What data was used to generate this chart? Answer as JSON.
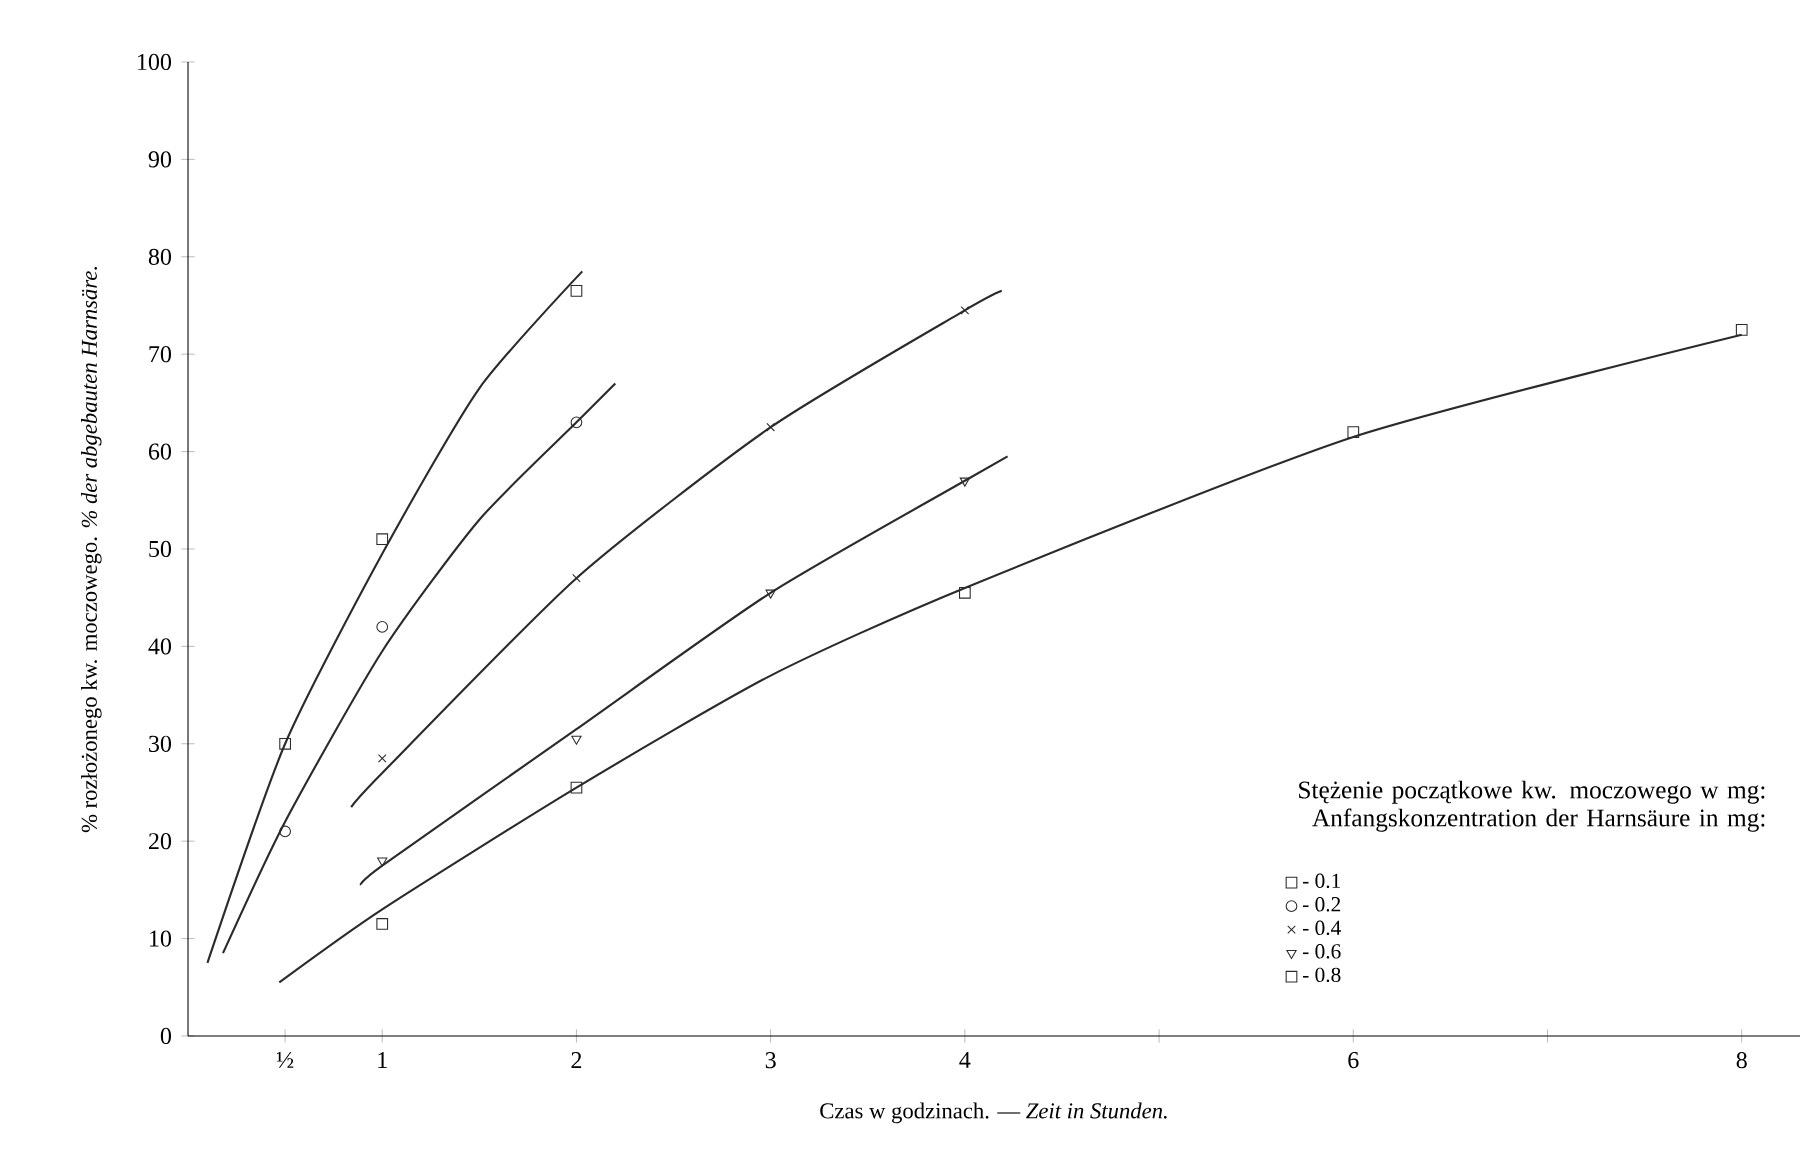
{
  "chart_data": {
    "type": "scatter",
    "xlabel": "Czas w godzinach.  —  *Zeit in Stunden.*",
    "ylabel": "% rozłożonego kw. moczowego.   *% der abgebauten Harnsäre.*",
    "legend_title": "Stężenie początkowe kw. moczowego w mg: Anfangskonzentration der Harnsäure in mg:",
    "legend": "bottom right",
    "xlim": [
      0,
      8.3
    ],
    "ylim": [
      0,
      100
    ],
    "xticks": [
      {
        "value": 0.5,
        "label": "½"
      },
      1,
      2,
      3,
      4,
      {
        "value": 5,
        "label": null
      },
      6,
      {
        "value": 7,
        "label": null
      },
      8
    ],
    "yticks": [
      0,
      10,
      20,
      30,
      40,
      50,
      60,
      70,
      80,
      90,
      100
    ],
    "grid": false,
    "series": [
      {
        "name": "- 0.1",
        "marker": "square",
        "color": "#2b2b2b",
        "x": [
          0.5,
          1,
          2
        ],
        "values": [
          30,
          51,
          76.5
        ]
      },
      {
        "name": "- 0.2",
        "marker": "circle",
        "color": "#2b2b2b",
        "x": [
          0.5,
          1,
          2
        ],
        "values": [
          21,
          42,
          63
        ]
      },
      {
        "name": "- 0.4",
        "marker": "cross",
        "color": "#2b2b2b",
        "x": [
          1,
          2,
          3,
          4
        ],
        "values": [
          28.5,
          47,
          62.5,
          74.5
        ]
      },
      {
        "name": "- 0.6",
        "marker": "triangle",
        "color": "#2b2b2b",
        "x": [
          1,
          2,
          3,
          4
        ],
        "values": [
          18,
          30.5,
          45.5,
          57
        ]
      },
      {
        "name": "- 0.8",
        "marker": "square",
        "color": "#2b2b2b",
        "x": [
          1,
          2,
          4,
          6,
          8
        ],
        "values": [
          11.5,
          25.5,
          45.5,
          62,
          72.5
        ]
      },
      {
        "type": "line",
        "marker": "none",
        "color": "#2b2b2b",
        "x": [
          0.1,
          0.5,
          1,
          1.5,
          2.03
        ],
        "values": [
          7.5,
          30,
          49.5,
          66.5,
          78.5
        ]
      },
      {
        "type": "line",
        "marker": "none",
        "color": "#2b2b2b",
        "x": [
          0.18,
          0.5,
          1,
          1.5,
          2,
          2.2
        ],
        "values": [
          8.5,
          22,
          39.5,
          53,
          63,
          67
        ]
      },
      {
        "type": "line",
        "marker": "none",
        "color": "#2b2b2b",
        "x": [
          0.84,
          1,
          2,
          3,
          4,
          4.19
        ],
        "values": [
          23.5,
          27,
          47,
          62.5,
          74.5,
          76.5
        ]
      },
      {
        "type": "line",
        "marker": "none",
        "color": "#2b2b2b",
        "x": [
          0.89,
          1,
          2,
          3,
          4,
          4.22
        ],
        "values": [
          15.5,
          17.5,
          31.5,
          45.5,
          57,
          59.5
        ]
      },
      {
        "type": "line",
        "marker": "none",
        "color": "#2b2b2b",
        "x": [
          0.47,
          1,
          2,
          3,
          4,
          6,
          8
        ],
        "values": [
          5.5,
          13,
          25.5,
          37,
          46,
          61.5,
          72
        ]
      }
    ]
  }
}
